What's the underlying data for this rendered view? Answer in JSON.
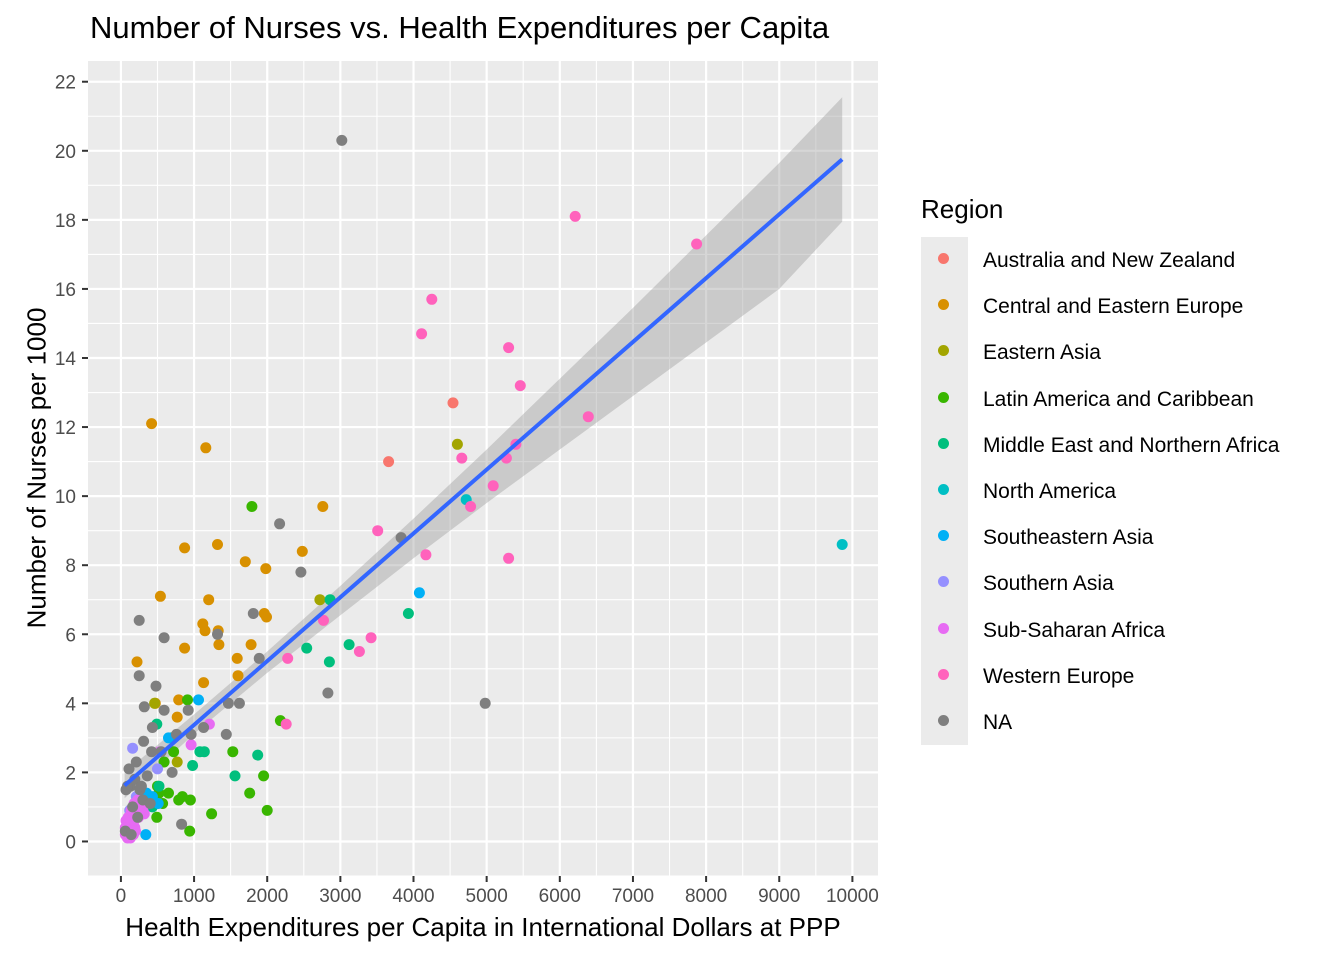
{
  "chart_data": {
    "type": "scatter",
    "title": "Number of Nurses vs. Health Expenditures per Capita",
    "xlabel": "Health Expenditures per Capita in International Dollars at PPP",
    "ylabel": "Number of Nurses per 1000",
    "xlim": [
      -450,
      10350
    ],
    "ylim": [
      -1,
      22.6
    ],
    "x_ticks": [
      "0",
      "1000",
      "2000",
      "3000",
      "4000",
      "5000",
      "6000",
      "7000",
      "8000",
      "9000",
      "10000"
    ],
    "y_ticks": [
      "0",
      "2",
      "4",
      "6",
      "8",
      "10",
      "12",
      "14",
      "16",
      "18",
      "20",
      "22"
    ],
    "x_tick_values": [
      0,
      1000,
      2000,
      3000,
      4000,
      5000,
      6000,
      7000,
      8000,
      9000,
      10000
    ],
    "y_tick_values": [
      0,
      2,
      4,
      6,
      8,
      10,
      12,
      14,
      16,
      18,
      20,
      22
    ],
    "grid": true,
    "legend_position": "right",
    "legend_title": "Region",
    "series": [
      {
        "name": "Australia and New Zealand",
        "color": "#F8766D",
        "points": [
          [
            3660,
            11.0
          ],
          [
            4540,
            12.7
          ]
        ]
      },
      {
        "name": "Central and Eastern Europe",
        "color": "#D89000",
        "points": [
          [
            420,
            12.1
          ],
          [
            1160,
            11.4
          ],
          [
            870,
            8.5
          ],
          [
            1320,
            8.6
          ],
          [
            540,
            7.1
          ],
          [
            1200,
            7.0
          ],
          [
            1120,
            6.3
          ],
          [
            1150,
            6.1
          ],
          [
            1330,
            6.1
          ],
          [
            870,
            5.6
          ],
          [
            1340,
            5.7
          ],
          [
            220,
            5.2
          ],
          [
            1590,
            5.3
          ],
          [
            1130,
            4.6
          ],
          [
            1600,
            4.8
          ],
          [
            790,
            4.1
          ],
          [
            470,
            4.0
          ],
          [
            770,
            3.6
          ],
          [
            1700,
            8.1
          ],
          [
            1980,
            7.9
          ],
          [
            2480,
            8.4
          ],
          [
            2760,
            9.7
          ],
          [
            1960,
            6.6
          ],
          [
            1990,
            6.5
          ],
          [
            1780,
            5.7
          ]
        ]
      },
      {
        "name": "Eastern Asia",
        "color": "#A3A500",
        "points": [
          [
            4600,
            11.5
          ],
          [
            2720,
            7.0
          ],
          [
            460,
            4.0
          ],
          [
            770,
            2.3
          ]
        ]
      },
      {
        "name": "Latin America and Caribbean",
        "color": "#39B600",
        "points": [
          [
            1790,
            9.7
          ],
          [
            910,
            4.1
          ],
          [
            2180,
            3.5
          ],
          [
            590,
            2.3
          ],
          [
            720,
            2.6
          ],
          [
            1530,
            2.6
          ],
          [
            1950,
            1.9
          ],
          [
            500,
            1.6
          ],
          [
            520,
            1.4
          ],
          [
            650,
            1.4
          ],
          [
            790,
            1.2
          ],
          [
            840,
            1.3
          ],
          [
            950,
            1.2
          ],
          [
            1760,
            1.4
          ],
          [
            2000,
            0.9
          ],
          [
            1240,
            0.8
          ],
          [
            490,
            0.7
          ],
          [
            940,
            0.3
          ],
          [
            570,
            1.1
          ],
          [
            470,
            1.2
          ]
        ]
      },
      {
        "name": "Middle East and Northern Africa",
        "color": "#00BF7D",
        "points": [
          [
            2860,
            7.0
          ],
          [
            3120,
            5.7
          ],
          [
            2540,
            5.6
          ],
          [
            2850,
            5.2
          ],
          [
            3930,
            6.6
          ],
          [
            490,
            3.4
          ],
          [
            980,
            2.2
          ],
          [
            1080,
            2.6
          ],
          [
            1140,
            2.6
          ],
          [
            1560,
            1.9
          ],
          [
            1870,
            2.5
          ],
          [
            690,
            3.0
          ],
          [
            430,
            1.0
          ],
          [
            520,
            1.6
          ]
        ]
      },
      {
        "name": "North America",
        "color": "#00BFC4",
        "points": [
          [
            4720,
            9.9
          ],
          [
            9860,
            8.6
          ]
        ]
      },
      {
        "name": "Southeastern Asia",
        "color": "#00B0F6",
        "points": [
          [
            4080,
            7.2
          ],
          [
            1060,
            4.1
          ],
          [
            650,
            3.0
          ],
          [
            350,
            1.4
          ],
          [
            430,
            1.3
          ],
          [
            510,
            1.1
          ],
          [
            340,
            0.2
          ],
          [
            230,
            0.9
          ]
        ]
      },
      {
        "name": "Southern Asia",
        "color": "#9590FF",
        "points": [
          [
            160,
            2.7
          ],
          [
            500,
            2.1
          ],
          [
            210,
            1.3
          ],
          [
            120,
            0.9
          ],
          [
            280,
            0.8
          ],
          [
            90,
            0.5
          ],
          [
            140,
            0.3
          ]
        ]
      },
      {
        "name": "Sub-Saharan Africa",
        "color": "#E76BF3",
        "points": [
          [
            1210,
            3.4
          ],
          [
            960,
            2.8
          ],
          [
            530,
            2.6
          ],
          [
            180,
            1.1
          ],
          [
            200,
            0.9
          ],
          [
            230,
            1.2
          ],
          [
            260,
            1.0
          ],
          [
            160,
            0.7
          ],
          [
            140,
            0.6
          ],
          [
            120,
            0.5
          ],
          [
            100,
            0.4
          ],
          [
            80,
            0.3
          ],
          [
            60,
            0.2
          ],
          [
            130,
            0.1
          ],
          [
            170,
            0.2
          ],
          [
            190,
            0.4
          ],
          [
            210,
            0.8
          ],
          [
            110,
            0.2
          ],
          [
            90,
            0.1
          ],
          [
            300,
            0.9
          ],
          [
            150,
            0.5
          ],
          [
            70,
            0.6
          ],
          [
            240,
            0.7
          ],
          [
            320,
            0.8
          ],
          [
            60,
            0.4
          ],
          [
            100,
            0.7
          ],
          [
            140,
            0.9
          ],
          [
            180,
            0.6
          ],
          [
            200,
            0.3
          ]
        ]
      },
      {
        "name": "Western Europe",
        "color": "#FF62BC",
        "points": [
          [
            6210,
            18.1
          ],
          [
            7870,
            17.3
          ],
          [
            4250,
            15.7
          ],
          [
            4110,
            14.7
          ],
          [
            5300,
            14.3
          ],
          [
            5460,
            13.2
          ],
          [
            6390,
            12.3
          ],
          [
            5400,
            11.5
          ],
          [
            4660,
            11.1
          ],
          [
            5270,
            11.1
          ],
          [
            5090,
            10.3
          ],
          [
            4780,
            9.7
          ],
          [
            3510,
            9.0
          ],
          [
            4170,
            8.3
          ],
          [
            5300,
            8.2
          ],
          [
            2770,
            6.4
          ],
          [
            3420,
            5.9
          ],
          [
            3260,
            5.5
          ],
          [
            2280,
            5.3
          ],
          [
            2260,
            3.4
          ]
        ]
      },
      {
        "name": "NA",
        "color": "#7F7F7F",
        "points": [
          [
            3020,
            20.3
          ],
          [
            2170,
            9.2
          ],
          [
            3830,
            8.8
          ],
          [
            2460,
            7.8
          ],
          [
            250,
            6.4
          ],
          [
            1810,
            6.6
          ],
          [
            590,
            5.9
          ],
          [
            1320,
            6.0
          ],
          [
            1890,
            5.3
          ],
          [
            250,
            4.8
          ],
          [
            480,
            4.5
          ],
          [
            2830,
            4.3
          ],
          [
            4980,
            4.0
          ],
          [
            1470,
            4.0
          ],
          [
            1620,
            4.0
          ],
          [
            320,
            3.9
          ],
          [
            590,
            3.8
          ],
          [
            920,
            3.8
          ],
          [
            430,
            3.3
          ],
          [
            1440,
            3.1
          ],
          [
            1130,
            3.3
          ],
          [
            960,
            3.1
          ],
          [
            310,
            2.9
          ],
          [
            550,
            2.6
          ],
          [
            760,
            3.1
          ],
          [
            420,
            2.6
          ],
          [
            210,
            2.3
          ],
          [
            110,
            2.1
          ],
          [
            700,
            2.0
          ],
          [
            360,
            1.9
          ],
          [
            130,
            1.6
          ],
          [
            260,
            1.5
          ],
          [
            70,
            1.5
          ],
          [
            830,
            0.5
          ],
          [
            230,
            0.7
          ],
          [
            90,
            1.6
          ],
          [
            190,
            1.8
          ],
          [
            300,
            1.2
          ],
          [
            160,
            1.0
          ],
          [
            60,
            0.3
          ],
          [
            140,
            0.2
          ],
          [
            280,
            1.6
          ],
          [
            400,
            1.1
          ]
        ]
      }
    ],
    "trend_line": {
      "x": [
        50,
        9860
      ],
      "y": [
        1.62,
        19.75
      ]
    },
    "confidence_band": {
      "x": [
        50,
        1000,
        2000,
        3000,
        4000,
        5000,
        6000,
        7000,
        8000,
        9000,
        9860
      ],
      "upper": [
        2.0,
        3.68,
        5.5,
        7.4,
        9.35,
        11.35,
        13.4,
        15.45,
        17.55,
        19.65,
        21.55
      ],
      "lower": [
        1.25,
        3.12,
        4.88,
        6.55,
        8.2,
        9.8,
        11.35,
        12.9,
        14.45,
        16.0,
        17.95
      ]
    },
    "colors": {
      "panel_bg": "#EBEBEB",
      "grid": "#FFFFFF",
      "line": "#3366FF",
      "band": "#999999"
    }
  }
}
